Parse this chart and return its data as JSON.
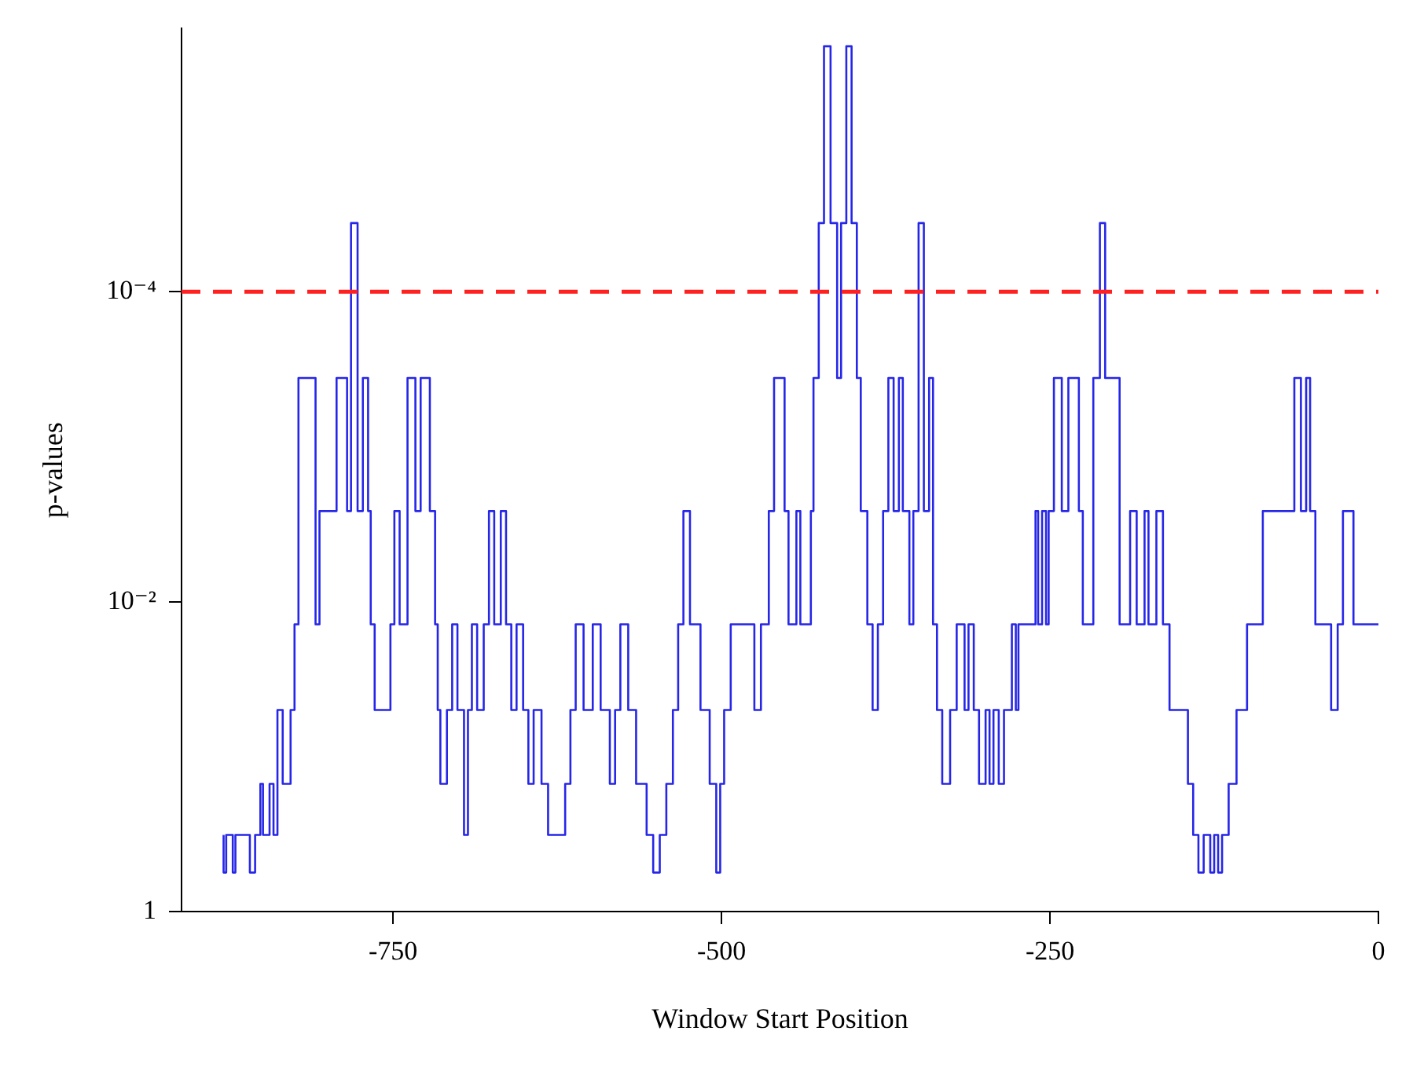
{
  "chart_data": {
    "type": "step",
    "xlabel": "Window Start Position",
    "ylabel": "p-values",
    "color": "#2626e8",
    "log": "y",
    "grid": false,
    "legend": false,
    "marker": "none",
    "line_style": "solid",
    "xlim": [
      -911,
      0
    ],
    "xticks": [
      -750,
      -500,
      -250,
      0
    ],
    "ylim": [
      1,
      2e-06
    ],
    "yticks": [
      1,
      {
        "value": 0.01,
        "label": "10⁻²"
      },
      {
        "value": 0.0001,
        "label": "10⁻⁴"
      }
    ],
    "ref_lines": [
      {
        "axis": "y",
        "value": 0.0001,
        "label": null,
        "color": "#ff2020",
        "line_style": "dashed"
      }
    ],
    "x": [
      -879,
      -877,
      -872,
      -870,
      -859,
      -855,
      -851,
      -849,
      -844,
      -841,
      -838,
      -834,
      -828,
      -825,
      -822,
      -809,
      -806,
      -793,
      -785,
      -782,
      -777,
      -773,
      -769,
      -767,
      -764,
      -752,
      -749,
      -745,
      -739,
      -733,
      -729,
      -722,
      -718,
      -716,
      -714,
      -709,
      -705,
      -701,
      -696,
      -693,
      -690,
      -686,
      -681,
      -677,
      -673,
      -668,
      -664,
      -660,
      -656,
      -651,
      -647,
      -643,
      -637,
      -632,
      -619,
      -615,
      -611,
      -605,
      -598,
      -592,
      -585,
      -581,
      -577,
      -571,
      -565,
      -557,
      -552,
      -547,
      -542,
      -537,
      -533,
      -529,
      -524,
      -516,
      -509,
      -504,
      -501,
      -498,
      -493,
      -475,
      -470,
      -464,
      -460,
      -452,
      -449,
      -443,
      -440,
      -432,
      -430,
      -426,
      -422,
      -417,
      -412,
      -409,
      -405,
      -401,
      -397,
      -394,
      -389,
      -385,
      -381,
      -377,
      -373,
      -369,
      -365,
      -362,
      -357,
      -354,
      -350,
      -346,
      -342,
      -339,
      -336,
      -332,
      -326,
      -321,
      -315,
      -312,
      -308,
      -304,
      -299,
      -296,
      -293,
      -289,
      -285,
      -279,
      -276,
      -274,
      -261,
      -259,
      -256,
      -253,
      -251,
      -247,
      -241,
      -236,
      -228,
      -225,
      -217,
      -212,
      -208,
      -197,
      -189,
      -184,
      -178,
      -175,
      -169,
      -164,
      -159,
      -145,
      -141,
      -137,
      -133,
      -128,
      -125,
      -122,
      -119,
      -114,
      -108,
      -100,
      -88,
      -64,
      -59,
      -55,
      -52,
      -48,
      -36,
      -31,
      -27,
      -19,
      -14,
      0
    ],
    "values": [
      0.32,
      0.56,
      0.32,
      0.56,
      0.32,
      0.56,
      0.32,
      0.15,
      0.32,
      0.15,
      0.32,
      0.05,
      0.15,
      0.05,
      0.014,
      0.00036,
      0.014,
      0.0026,
      0.00036,
      0.0026,
      3.6e-05,
      0.0026,
      0.00036,
      0.0026,
      0.014,
      0.05,
      0.014,
      0.0026,
      0.014,
      0.00036,
      0.0026,
      0.00036,
      0.0026,
      0.014,
      0.05,
      0.15,
      0.05,
      0.014,
      0.05,
      0.32,
      0.05,
      0.014,
      0.05,
      0.014,
      0.0026,
      0.014,
      0.0026,
      0.014,
      0.05,
      0.014,
      0.05,
      0.15,
      0.05,
      0.15,
      0.32,
      0.15,
      0.05,
      0.014,
      0.05,
      0.014,
      0.05,
      0.15,
      0.05,
      0.014,
      0.05,
      0.15,
      0.32,
      0.56,
      0.32,
      0.15,
      0.05,
      0.014,
      0.0026,
      0.014,
      0.05,
      0.15,
      0.56,
      0.15,
      0.05,
      0.014,
      0.05,
      0.014,
      0.0026,
      0.00036,
      0.0026,
      0.014,
      0.0026,
      0.014,
      0.0026,
      0.00036,
      3.6e-05,
      2.6e-06,
      3.6e-05,
      0.00036,
      3.6e-05,
      2.6e-06,
      3.6e-05,
      0.00036,
      0.0026,
      0.014,
      0.05,
      0.014,
      0.0026,
      0.00036,
      0.0026,
      0.00036,
      0.0026,
      0.014,
      0.0026,
      3.6e-05,
      0.0026,
      0.00036,
      0.014,
      0.05,
      0.15,
      0.05,
      0.014,
      0.05,
      0.014,
      0.05,
      0.15,
      0.05,
      0.15,
      0.05,
      0.15,
      0.05,
      0.014,
      0.05,
      0.014,
      0.0026,
      0.014,
      0.0026,
      0.014,
      0.0026,
      0.00036,
      0.0026,
      0.00036,
      0.0026,
      0.014,
      0.00036,
      3.6e-05,
      0.00036,
      0.014,
      0.0026,
      0.014,
      0.0026,
      0.014,
      0.0026,
      0.014,
      0.05,
      0.15,
      0.32,
      0.56,
      0.32,
      0.56,
      0.32,
      0.56,
      0.32,
      0.15,
      0.05,
      0.014,
      0.0026,
      0.00036,
      0.0026,
      0.00036,
      0.0026,
      0.014,
      0.05,
      0.014,
      0.0026,
      0.014,
      0.014
    ]
  }
}
